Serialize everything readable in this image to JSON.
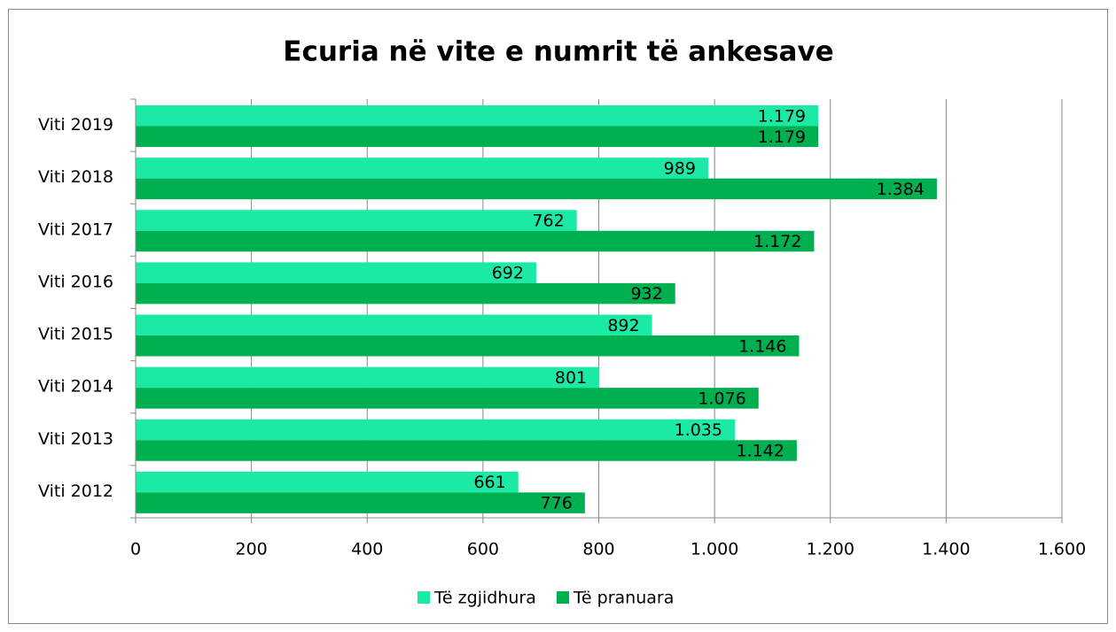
{
  "chart_data": {
    "type": "bar",
    "orientation": "horizontal",
    "title": "Ecuria në vite e numrit të ankesave",
    "categories": [
      "Viti 2019",
      "Viti 2018",
      "Viti 2017",
      "Viti 2016",
      "Viti 2015",
      "Viti 2014",
      "Viti 2013",
      "Viti 2012"
    ],
    "series": [
      {
        "name": "Të zgjidhura",
        "color": "#1aeaa6",
        "values": [
          1179,
          989,
          762,
          692,
          892,
          801,
          1035,
          661
        ],
        "value_labels": [
          "1.179",
          "989",
          "762",
          "692",
          "892",
          "801",
          "1.035",
          "661"
        ]
      },
      {
        "name": "Të pranuara",
        "color": "#00b050",
        "values": [
          1179,
          1384,
          1172,
          932,
          1146,
          1076,
          1142,
          776
        ],
        "value_labels": [
          "1.179",
          "1.384",
          "1.172",
          "932",
          "1.146",
          "1.076",
          "1.142",
          "776"
        ]
      }
    ],
    "xlim": [
      0,
      1600
    ],
    "xticks": [
      0,
      200,
      400,
      600,
      800,
      {
        "value": 1000,
        "label": "1.000"
      },
      {
        "value": 1200,
        "label": "1.200"
      },
      {
        "value": 1400,
        "label": "1.400"
      },
      {
        "value": 1600,
        "label": "1.600"
      }
    ],
    "grid": true,
    "legend": "bottom"
  }
}
